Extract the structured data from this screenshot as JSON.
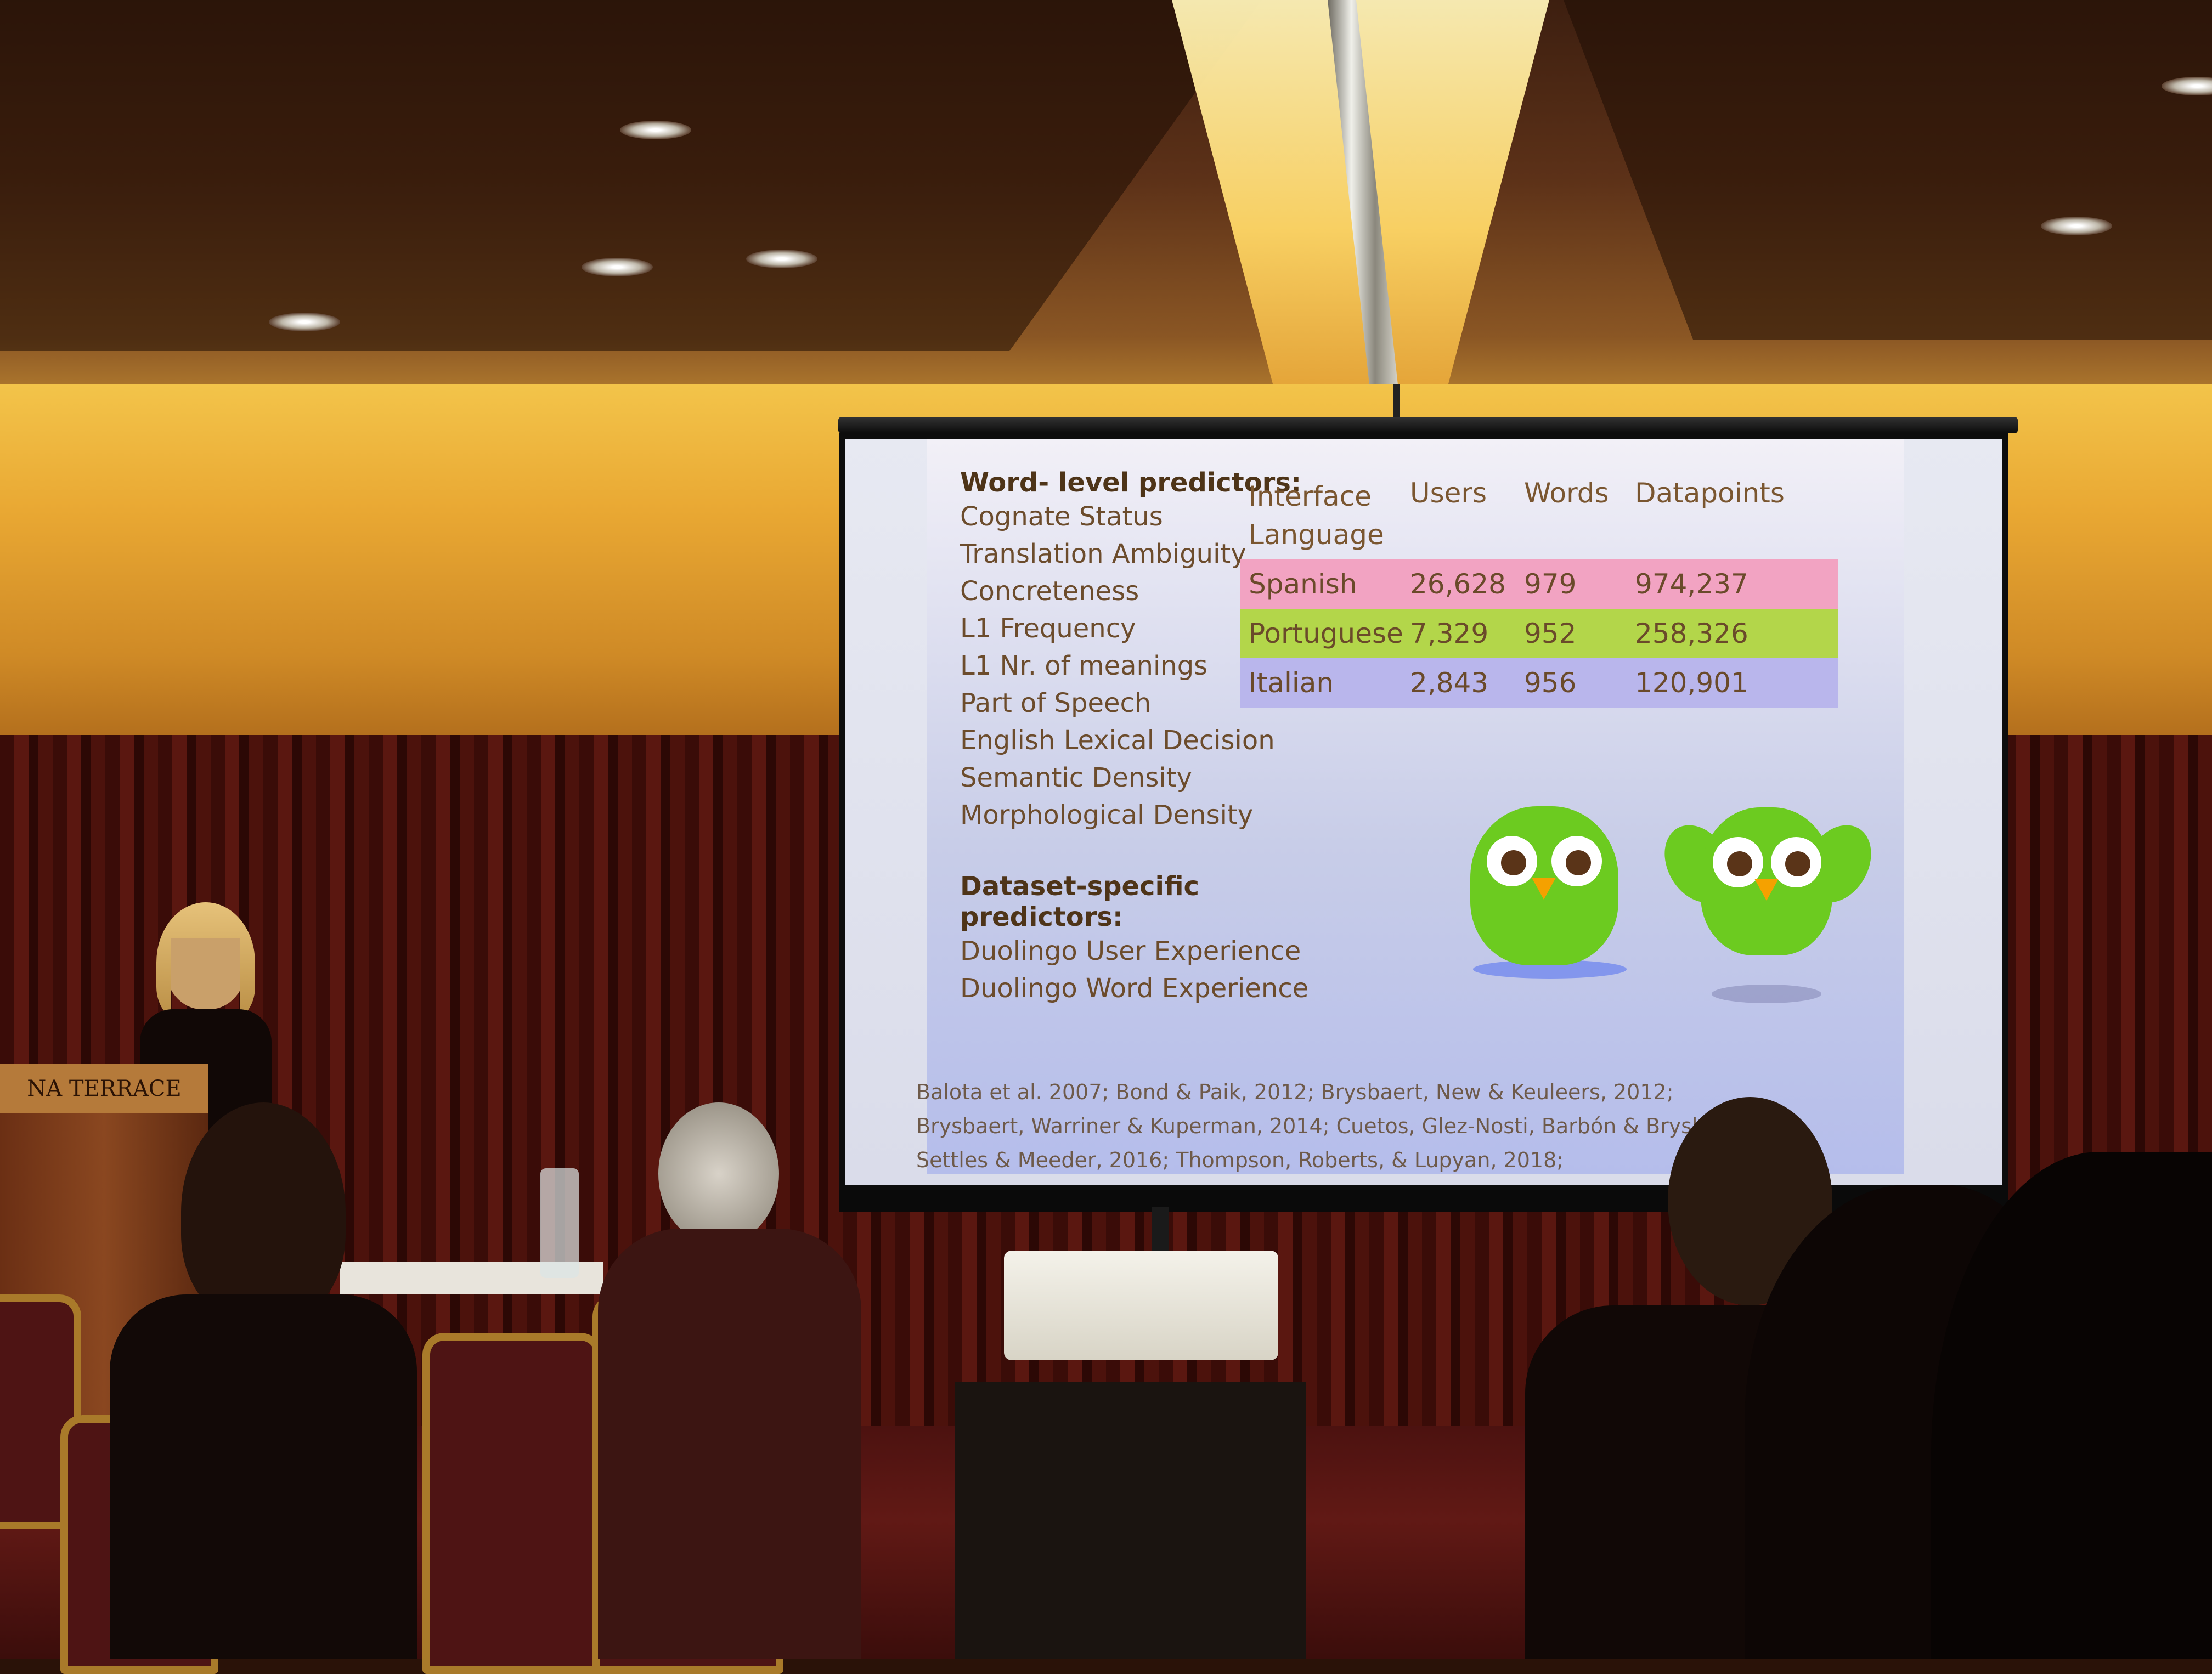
{
  "slide": {
    "word_level_heading": "Word- level predictors:",
    "word_level_items": [
      "Cognate Status",
      "Translation Ambiguity",
      "Concreteness",
      "L1 Frequency",
      "L1 Nr. of meanings",
      "Part of Speech",
      "English Lexical Decision",
      "Semantic Density",
      "Morphological Density"
    ],
    "dataset_heading": "Dataset-specific predictors:",
    "dataset_items": [
      "Duolingo User Experience",
      "Duolingo Word Experience"
    ],
    "table": {
      "headers": {
        "lang": "Interface Language",
        "users": "Users",
        "words": "Words",
        "datapoints": "Datapoints"
      },
      "rows": [
        {
          "lang": "Spanish",
          "users": "26,628",
          "words": "979",
          "datapoints": "974,237",
          "color": "#f2a3c2"
        },
        {
          "lang": "Portuguese",
          "users": "7,329",
          "words": "952",
          "datapoints": "258,326",
          "color": "#b3d64a"
        },
        {
          "lang": "Italian",
          "users": "2,843",
          "words": "956",
          "datapoints": "120,901",
          "color": "#b9b6ec"
        }
      ]
    },
    "references": [
      "Balota et al. 2007; Bond & Paik, 2012; Brysbaert, New & Keuleers, 2012;",
      "Brysbaert, Warriner & Kuperman, 2014; Cuetos, Glez-Nosti, Barbón & Brysb",
      "Settles & Meeder, 2016; Thompson, Roberts, & Lupyan, 2018;"
    ],
    "mascot_icon": "green-owl-icon"
  },
  "room": {
    "podium_sign": "NA TERRACE"
  }
}
